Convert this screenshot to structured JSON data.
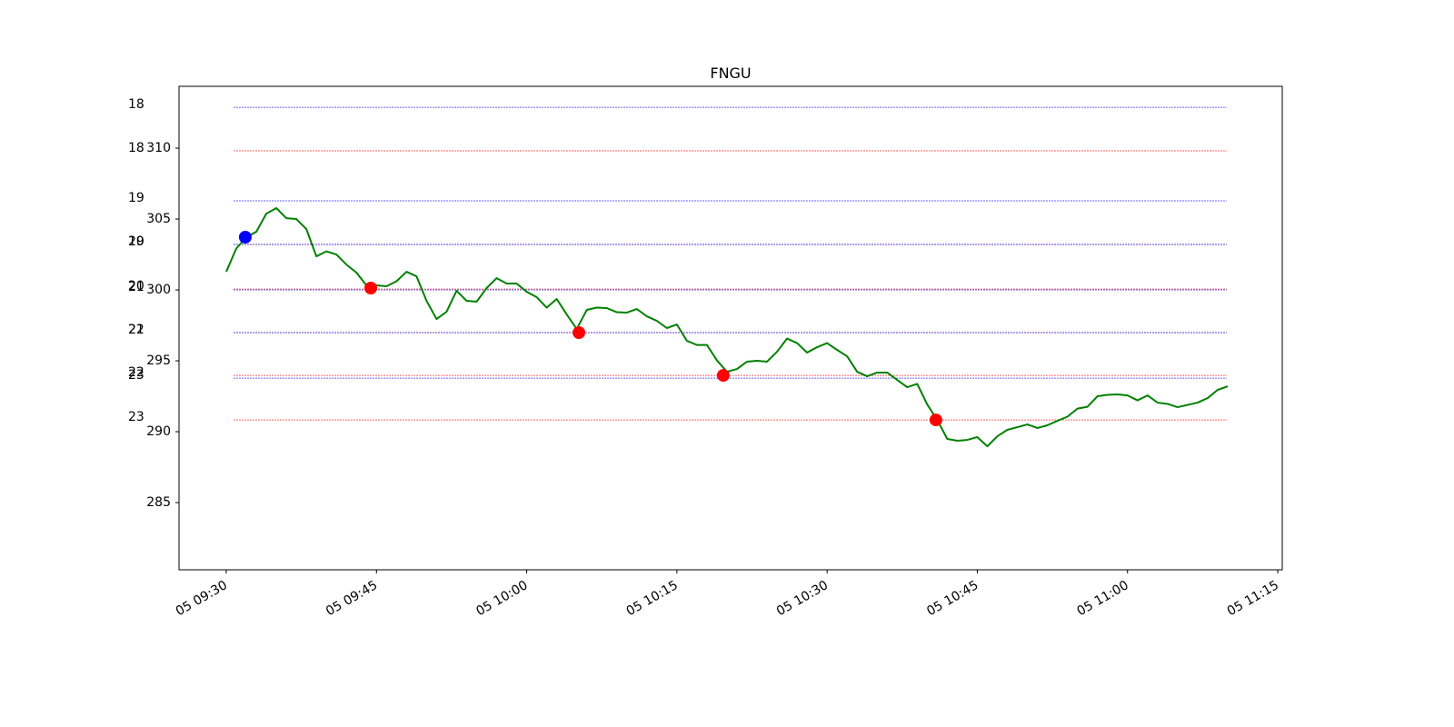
{
  "chart_data": {
    "type": "line",
    "title": "FNGU",
    "x": [
      "05 09:30",
      "05 09:31",
      "05 09:32",
      "05 09:33",
      "05 09:34",
      "05 09:35",
      "05 09:36",
      "05 09:37",
      "05 09:38",
      "05 09:39",
      "05 09:40",
      "05 09:41",
      "05 09:42",
      "05 09:43",
      "05 09:44",
      "05 09:45",
      "05 09:46",
      "05 09:47",
      "05 09:48",
      "05 09:49",
      "05 09:50",
      "05 09:51",
      "05 09:52",
      "05 09:53",
      "05 09:54",
      "05 09:55",
      "05 09:56",
      "05 09:57",
      "05 09:58",
      "05 09:59",
      "05 10:00",
      "05 10:01",
      "05 10:02",
      "05 10:03",
      "05 10:04",
      "05 10:05",
      "05 10:06",
      "05 10:07",
      "05 10:08",
      "05 10:09",
      "05 10:10",
      "05 10:11",
      "05 10:12",
      "05 10:13",
      "05 10:14",
      "05 10:15",
      "05 10:16",
      "05 10:17",
      "05 10:18",
      "05 10:19",
      "05 10:20",
      "05 10:21",
      "05 10:22",
      "05 10:23",
      "05 10:24",
      "05 10:25",
      "05 10:26",
      "05 10:27",
      "05 10:28",
      "05 10:29",
      "05 10:30",
      "05 10:31",
      "05 10:32",
      "05 10:33",
      "05 10:34",
      "05 10:35",
      "05 10:36",
      "05 10:37",
      "05 10:38",
      "05 10:39",
      "05 10:40",
      "05 10:41",
      "05 10:42",
      "05 10:43",
      "05 10:44",
      "05 10:45",
      "05 10:46",
      "05 10:47",
      "05 10:48",
      "05 10:49",
      "05 10:50",
      "05 10:51",
      "05 10:52",
      "05 10:53",
      "05 10:54",
      "05 10:55",
      "05 10:56",
      "05 10:57",
      "05 10:58",
      "05 10:59",
      "05 11:00",
      "05 11:01",
      "05 11:02",
      "05 11:03",
      "05 11:04",
      "05 11:05",
      "05 11:06",
      "05 11:07",
      "05 11:08",
      "05 11:09",
      "05 11:10"
    ],
    "values": [
      301.28,
      302.92,
      303.72,
      304.1,
      305.38,
      305.77,
      305.06,
      305.0,
      304.29,
      302.37,
      302.72,
      302.5,
      301.79,
      301.22,
      300.32,
      300.32,
      300.26,
      300.61,
      301.28,
      300.96,
      299.23,
      297.95,
      298.46,
      299.94,
      299.23,
      299.17,
      300.13,
      300.83,
      300.45,
      300.45,
      299.87,
      299.49,
      298.75,
      299.36,
      298.27,
      297.24,
      298.59,
      298.75,
      298.72,
      298.43,
      298.4,
      298.65,
      298.14,
      297.82,
      297.31,
      297.56,
      296.41,
      296.12,
      296.12,
      295.03,
      294.23,
      294.42,
      294.94,
      295.0,
      294.94,
      295.64,
      296.57,
      296.25,
      295.58,
      295.96,
      296.25,
      295.77,
      295.32,
      294.23,
      293.91,
      294.17,
      294.17,
      293.65,
      293.14,
      293.37,
      291.92,
      290.83,
      289.49,
      289.36,
      289.42,
      289.62,
      288.97,
      289.68,
      290.13,
      290.32,
      290.51,
      290.26,
      290.45,
      290.77,
      291.06,
      291.63,
      291.76,
      292.5,
      292.6,
      292.63,
      292.56,
      292.21,
      292.56,
      292.05,
      291.96,
      291.73,
      291.89,
      292.05,
      292.37,
      292.95,
      293.2
    ],
    "color": "#008000",
    "points": {
      "x": [
        "05 09:31:54",
        "05 09:44:26",
        "05 10:05:13",
        "05 10:19:38",
        "05 10:40:52"
      ],
      "values": [
        303.72,
        300.13,
        296.99,
        293.97,
        290.83
      ],
      "colors": [
        "#0000ff",
        "#ff0000",
        "#ff0000",
        "#ff0000",
        "#ff0000"
      ]
    },
    "levels": [
      {
        "label": "18",
        "value": 312.88,
        "color": "#0000ff"
      },
      {
        "label": "18",
        "value": 309.81,
        "color": "#ff0000"
      },
      {
        "label": "19",
        "value": 306.28,
        "color": "#0000ff"
      },
      {
        "label": "19",
        "value": 303.21,
        "color": "#ff0000"
      },
      {
        "label": "20",
        "value": 303.21,
        "color": "#0000ff"
      },
      {
        "label": "20",
        "value": 300.06,
        "color": "#ff0000"
      },
      {
        "label": "21",
        "value": 300.0,
        "color": "#0000ff"
      },
      {
        "label": "21",
        "value": 296.99,
        "color": "#ff0000"
      },
      {
        "label": "22",
        "value": 296.99,
        "color": "#0000ff"
      },
      {
        "label": "22",
        "value": 293.97,
        "color": "#ff0000"
      },
      {
        "label": "23",
        "value": 293.78,
        "color": "#0000ff"
      },
      {
        "label": "23",
        "value": 290.83,
        "color": "#ff0000"
      }
    ],
    "level_xlim": [
      "05 09:30:45",
      "05 11:09:54"
    ],
    "xlim": [
      "05 09:25:17",
      "05 11:15:27"
    ],
    "xticks": [
      "05 09:30",
      "05 09:45",
      "05 10:00",
      "05 10:15",
      "05 10:30",
      "05 10:45",
      "05 11:00",
      "05 11:15"
    ],
    "ylim": [
      280.26,
      314.36
    ],
    "yticks": [
      285,
      290,
      295,
      300,
      305,
      310
    ]
  }
}
